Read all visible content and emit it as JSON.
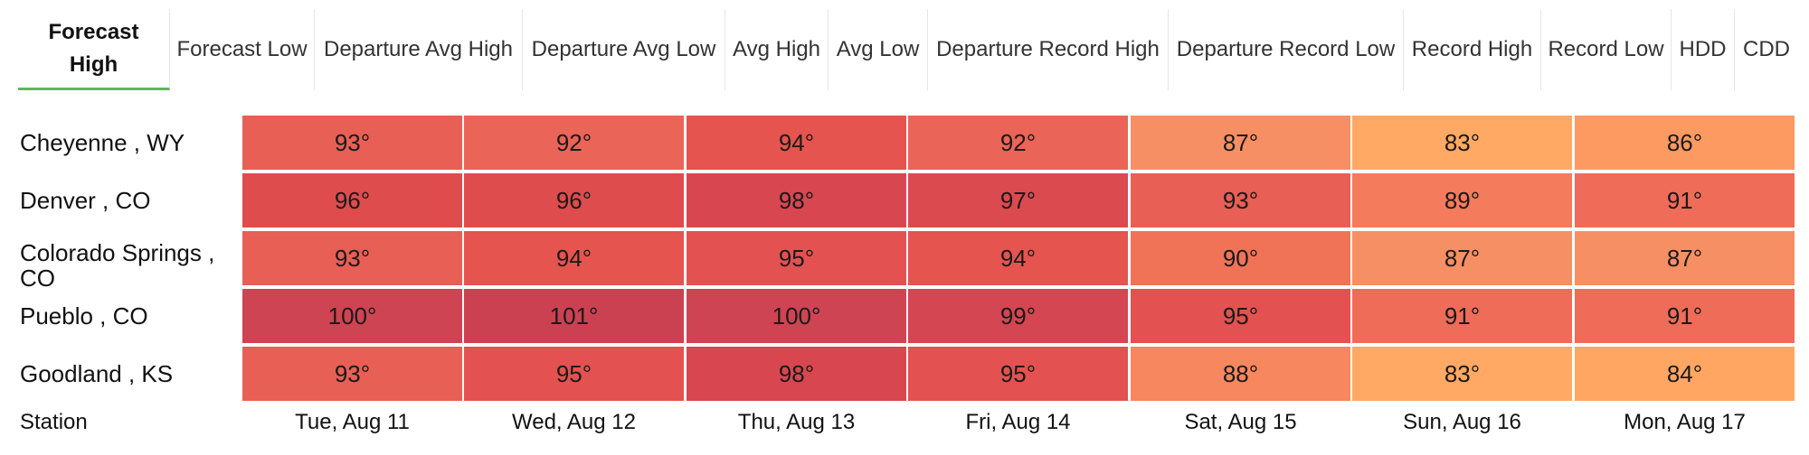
{
  "tabs": [
    {
      "label": "Forecast High",
      "active": true
    },
    {
      "label": "Forecast Low",
      "active": false
    },
    {
      "label": "Departure Avg High",
      "active": false
    },
    {
      "label": "Departure Avg Low",
      "active": false
    },
    {
      "label": "Avg High",
      "active": false
    },
    {
      "label": "Avg Low",
      "active": false
    },
    {
      "label": "Departure Record High",
      "active": false
    },
    {
      "label": "Departure Record Low",
      "active": false
    },
    {
      "label": "Record High",
      "active": false
    },
    {
      "label": "Record Low",
      "active": false
    },
    {
      "label": "HDD",
      "active": false
    },
    {
      "label": "CDD",
      "active": false
    }
  ],
  "table": {
    "station_header": "Station",
    "dates": [
      "Tue, Aug 11",
      "Wed, Aug 12",
      "Thu, Aug 13",
      "Fri, Aug 14",
      "Sat, Aug 15",
      "Sun, Aug 16",
      "Mon, Aug 17"
    ],
    "rows": [
      {
        "station": "Cheyenne , WY",
        "values": [
          "93°",
          "92°",
          "94°",
          "92°",
          "87°",
          "83°",
          "86°"
        ],
        "colors": [
          "#e85f55",
          "#eb6458",
          "#e5544f",
          "#eb6458",
          "#f78f64",
          "#ffa964",
          "#fc9a62"
        ]
      },
      {
        "station": "Denver , CO",
        "values": [
          "96°",
          "96°",
          "98°",
          "97°",
          "93°",
          "89°",
          "91°"
        ],
        "colors": [
          "#df4c4e",
          "#df4c4e",
          "#d84750",
          "#db4a4f",
          "#e85f55",
          "#f47b5b",
          "#ef6c58"
        ]
      },
      {
        "station": "Colorado Springs , CO",
        "values": [
          "93°",
          "94°",
          "95°",
          "94°",
          "90°",
          "87°",
          "87°"
        ],
        "colors": [
          "#e85f55",
          "#e5544f",
          "#e35250",
          "#e5544f",
          "#f17357",
          "#f78f64",
          "#f78f64"
        ]
      },
      {
        "station": "Pueblo , CO",
        "values": [
          "100°",
          "101°",
          "100°",
          "99°",
          "95°",
          "91°",
          "91°"
        ],
        "colors": [
          "#cf4452",
          "#cb4152",
          "#cf4452",
          "#d44651",
          "#e35250",
          "#ef6c58",
          "#ef6c58"
        ]
      },
      {
        "station": "Goodland , KS",
        "values": [
          "93°",
          "95°",
          "98°",
          "95°",
          "88°",
          "83°",
          "84°"
        ],
        "colors": [
          "#e85f55",
          "#e35250",
          "#d84750",
          "#e35250",
          "#f7875e",
          "#ffa964",
          "#ffa663"
        ]
      }
    ]
  }
}
